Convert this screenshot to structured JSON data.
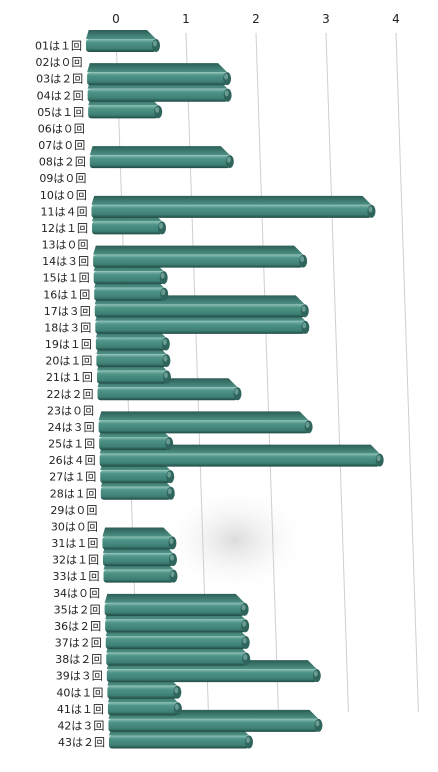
{
  "chart_data": {
    "type": "bar",
    "orientation": "horizontal",
    "style": "3d-perspective",
    "bar_color": "#3e7f74",
    "grid": true,
    "xlim": [
      0,
      4
    ],
    "x_ticks": [
      "0",
      "1",
      "2",
      "3",
      "4"
    ],
    "categories": [
      "01は１回",
      "02は０回",
      "03は２回",
      "04は２回",
      "05は１回",
      "06は０回",
      "07は０回",
      "08は２回",
      "09は０回",
      "10は０回",
      "11は４回",
      "12は１回",
      "13は０回",
      "14は３回",
      "15は１回",
      "16は１回",
      "17は３回",
      "18は３回",
      "19は１回",
      "20は１回",
      "21は１回",
      "22は２回",
      "23は０回",
      "24は３回",
      "25は１回",
      "26は４回",
      "27は１回",
      "28は１回",
      "29は０回",
      "30は０回",
      "31は１回",
      "32は１回",
      "33は１回",
      "34は０回",
      "35は２回",
      "36は２回",
      "37は２回",
      "38は２回",
      "39は３回",
      "40は１回",
      "41は１回",
      "42は３回",
      "43は２回"
    ],
    "values": [
      1,
      0,
      2,
      2,
      1,
      0,
      0,
      2,
      0,
      0,
      4,
      1,
      0,
      3,
      1,
      1,
      3,
      3,
      1,
      1,
      1,
      2,
      0,
      3,
      1,
      4,
      1,
      1,
      0,
      0,
      1,
      1,
      1,
      0,
      2,
      2,
      2,
      2,
      3,
      1,
      1,
      3,
      2
    ]
  }
}
